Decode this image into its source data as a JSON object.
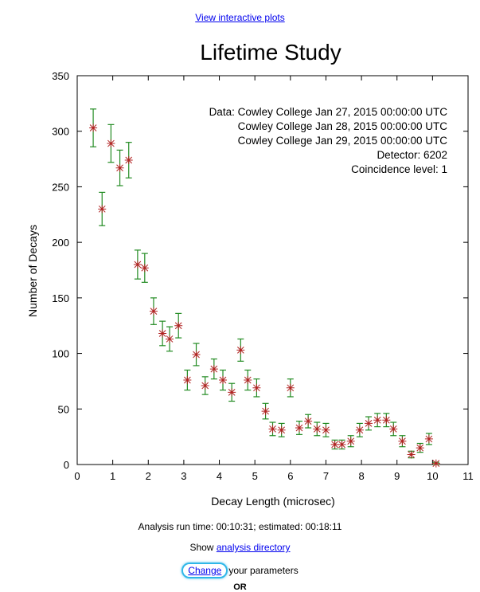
{
  "top_link": "View interactive plots",
  "colors": {
    "points": "#b22222",
    "errorbars": "#228b22",
    "link": "#0000ee",
    "highlight": "#2fb7e8"
  },
  "chart_data": {
    "type": "scatter",
    "title": "Lifetime Study",
    "xlabel": "Decay Length (microsec)",
    "ylabel": "Number of Decays",
    "xlim": [
      0,
      11
    ],
    "ylim": [
      0,
      350
    ],
    "xticks": [
      "0",
      "1",
      "2",
      "3",
      "4",
      "5",
      "6",
      "7",
      "8",
      "9",
      "10",
      "11"
    ],
    "yticks": [
      "0",
      "50",
      "100",
      "150",
      "200",
      "250",
      "300",
      "350"
    ],
    "legend_text": [
      "Data: Cowley College Jan 27, 2015 00:00:00 UTC",
      "Cowley College Jan 28, 2015 00:00:00 UTC",
      "Cowley College Jan 29, 2015 00:00:00 UTC",
      "Detector: 6202",
      "Coincidence level: 1"
    ],
    "legend_position": "top-right",
    "grid": false,
    "series": [
      {
        "x": [
          0.45,
          0.7,
          0.95,
          1.2,
          1.45,
          1.7,
          1.9,
          2.15,
          2.4,
          2.6,
          2.85,
          3.1,
          3.35,
          3.6,
          3.85,
          4.1,
          4.35,
          4.6,
          4.8,
          5.05,
          5.3,
          5.5,
          5.75,
          6.0,
          6.25,
          6.5,
          6.75,
          7.0,
          7.25,
          7.45,
          7.7,
          7.95,
          8.2,
          8.45,
          8.7,
          8.9,
          9.15,
          9.4,
          9.65,
          9.9,
          10.1
        ],
        "y": [
          303,
          230,
          289,
          267,
          274,
          180,
          177,
          138,
          118,
          113,
          125,
          76,
          99,
          71,
          86,
          76,
          65,
          103,
          76,
          69,
          48,
          32,
          31,
          69,
          33,
          39,
          32,
          31,
          18,
          18,
          21,
          31,
          37,
          40,
          40,
          32,
          21,
          9,
          15,
          23,
          1
        ],
        "err": [
          17,
          15,
          17,
          16,
          16,
          13,
          13,
          12,
          11,
          11,
          11,
          9,
          10,
          8,
          9,
          9,
          8,
          10,
          9,
          8,
          7,
          6,
          6,
          8,
          6,
          6,
          6,
          6,
          4,
          4,
          5,
          6,
          6,
          6,
          6,
          6,
          5,
          3,
          4,
          5,
          1
        ]
      }
    ]
  },
  "footer": {
    "runtime": "Analysis run time: 00:10:31; estimated: 00:18:11",
    "show_prefix": "Show",
    "analysis_link": "analysis directory",
    "change_link": "Change",
    "change_suffix": "your parameters",
    "or_text": "OR"
  }
}
